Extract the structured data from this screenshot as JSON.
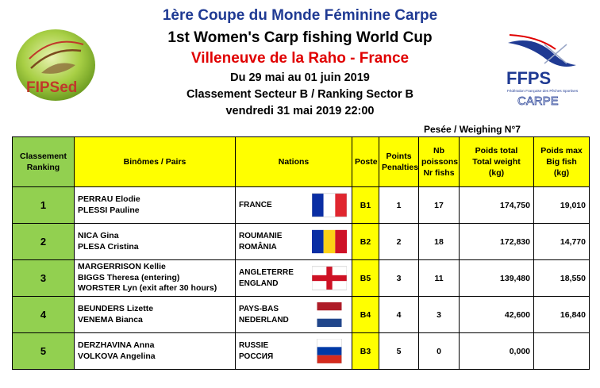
{
  "header": {
    "line1": "1ère Coupe du Monde Féminine Carpe",
    "line2": "1st Women's Carp fishing World Cup",
    "line3": "Villeneuve de la Raho - France",
    "line4": "Du 29 mai au 01 juin 2019",
    "line5": "Classement Secteur B / Ranking Sector B",
    "line6": "vendredi 31 mai 2019 22:00",
    "weighing": "Pesée / Weighing N°7"
  },
  "logos": {
    "left_text": "FIPSed",
    "right_text": "FFPS",
    "right_sub": "Fédération Française des Pêches Sportives",
    "right_sub2": "CARPE"
  },
  "table": {
    "headers": {
      "rank": [
        "Classement",
        "Ranking"
      ],
      "pairs": "Binômes / Pairs",
      "nations": "Nations",
      "poste": "Poste",
      "penalties": [
        "Points",
        "Penalties"
      ],
      "fish": [
        "Nb",
        "poissons",
        "Nr fishs"
      ],
      "total": [
        "Poids total",
        "Total weight",
        "(kg)"
      ],
      "bigfish": [
        "Poids max",
        "Big fish",
        "(kg)"
      ]
    },
    "rows": [
      {
        "rank": "1",
        "names": [
          "PERRAU Elodie",
          "PLESSI Pauline"
        ],
        "nation": [
          "FRANCE"
        ],
        "poste": "B1",
        "penalties": "1",
        "fish": "17",
        "total": "174,750",
        "bigfish": "19,010"
      },
      {
        "rank": "2",
        "names": [
          "NICA Gina",
          "PLESA Cristina"
        ],
        "nation": [
          "ROUMANIE",
          "ROMÂNIA"
        ],
        "poste": "B2",
        "penalties": "2",
        "fish": "18",
        "total": "172,830",
        "bigfish": "14,770"
      },
      {
        "rank": "3",
        "names": [
          "MARGERRISON Kellie",
          "BIGGS Theresa (entering)",
          "WORSTER Lyn (exit after 30 hours)"
        ],
        "nation": [
          "ANGLETERRE",
          "ENGLAND"
        ],
        "poste": "B5",
        "penalties": "3",
        "fish": "11",
        "total": "139,480",
        "bigfish": "18,550"
      },
      {
        "rank": "4",
        "names": [
          "BEUNDERS Lizette",
          "VENEMA Bianca"
        ],
        "nation": [
          "PAYS-BAS",
          "NEDERLAND"
        ],
        "poste": "B4",
        "penalties": "4",
        "fish": "3",
        "total": "42,600",
        "bigfish": "16,840"
      },
      {
        "rank": "5",
        "names": [
          "DERZHAVINA Anna",
          "VOLKOVA Angelina"
        ],
        "nation": [
          "RUSSIE",
          "РОССИЯ"
        ],
        "poste": "B3",
        "penalties": "5",
        "fish": "0",
        "total": "0,000",
        "bigfish": ""
      }
    ],
    "flags": [
      "france-flag",
      "romania-flag",
      "england-flag",
      "netherlands-flag",
      "russia-flag"
    ]
  }
}
